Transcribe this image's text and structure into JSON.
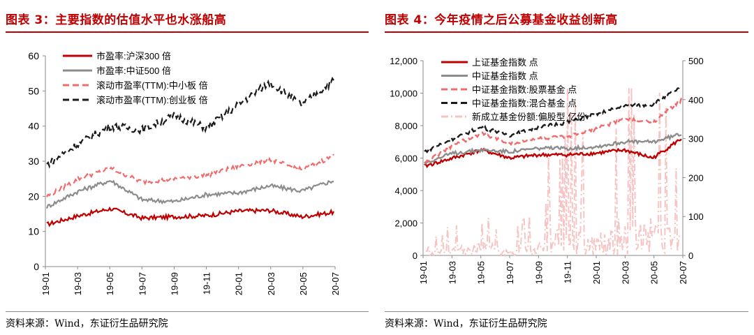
{
  "panels": [
    {
      "title": "图表 3：主要指数的估值水平也水涨船高",
      "source": "资料来源：Wind，东证衍生品研究院"
    },
    {
      "title": "图表 4：今年疫情之后公募基金收益创新高",
      "source": "资料来源：Wind，东证衍生品研究院"
    }
  ],
  "chart_data": [
    {
      "type": "line",
      "title": "主要指数的估值水平也水涨船高",
      "x": [
        "19-01",
        "19-03",
        "19-05",
        "19-07",
        "19-09",
        "19-11",
        "20-01",
        "20-03",
        "20-05",
        "20-07"
      ],
      "ylim": [
        0,
        60
      ],
      "yticks": [
        0,
        10,
        20,
        30,
        40,
        50,
        60
      ],
      "series": [
        {
          "name": "市盈率:沪深300 倍",
          "color": "#c00000",
          "dash": "solid",
          "values": [
            12.0,
            14.5,
            16.5,
            13.8,
            14.2,
            14.5,
            15.8,
            16.0,
            14.2,
            15.5
          ]
        },
        {
          "name": "市盈率:中证500 倍",
          "color": "#8c8c8c",
          "dash": "solid",
          "values": [
            17.0,
            21.5,
            24.5,
            19.0,
            18.5,
            20.5,
            21.0,
            23.0,
            21.5,
            24.5
          ]
        },
        {
          "name": "滚动市盈率(TTM):中小板 倍",
          "color": "#f06b6b",
          "dash": "dashed",
          "values": [
            20.0,
            25.0,
            28.0,
            24.0,
            25.0,
            26.0,
            28.5,
            30.5,
            27.5,
            31.5
          ]
        },
        {
          "name": "滚动市盈率(TTM):创业板 倍",
          "color": "#1a1a1a",
          "dash": "dashed",
          "values": [
            29.0,
            35.0,
            40.0,
            39.0,
            43.0,
            39.5,
            46.0,
            52.5,
            46.0,
            53.0
          ]
        }
      ]
    },
    {
      "type": "line",
      "title": "今年疫情之后公募基金收益创新高",
      "x": [
        "19-01",
        "19-03",
        "19-05",
        "19-07",
        "19-09",
        "19-11",
        "20-01",
        "20-03",
        "20-05",
        "20-07"
      ],
      "ylim": [
        0,
        12000
      ],
      "yticks": [
        "0",
        "2,000",
        "4,000",
        "6,000",
        "8,000",
        "10,000",
        "12,000"
      ],
      "ylim_right": [
        0,
        500
      ],
      "yticks_right": [
        0,
        100,
        200,
        300,
        400,
        500
      ],
      "series": [
        {
          "name": "上证基金指数 点",
          "color": "#c00000",
          "dash": "solid",
          "axis": "left",
          "values": [
            5500,
            6000,
            6500,
            6000,
            6200,
            6200,
            6300,
            6500,
            6000,
            7200
          ]
        },
        {
          "name": "中证基金指数 点",
          "color": "#8c8c8c",
          "dash": "solid",
          "axis": "left",
          "values": [
            5700,
            6300,
            6500,
            6400,
            6600,
            6600,
            6700,
            7000,
            7000,
            7500
          ]
        },
        {
          "name": "中证基金指数:股票基金 点",
          "color": "#f06b6b",
          "dash": "dashed",
          "axis": "left",
          "values": [
            5700,
            6800,
            7500,
            6900,
            7200,
            7300,
            7800,
            8400,
            8200,
            9600
          ]
        },
        {
          "name": "中证基金指数:混合基金 点",
          "color": "#1a1a1a",
          "dash": "dashed",
          "axis": "left",
          "values": [
            6400,
            7200,
            7900,
            7400,
            7900,
            8200,
            8700,
            9200,
            9300,
            10400
          ]
        },
        {
          "name": "新成立基金份额:偏股型 亿份",
          "color": "#f7c4c4",
          "dash": "dashdot",
          "axis": "right",
          "values": [
            10,
            40,
            80,
            30,
            60,
            230,
            90,
            240,
            200,
            130
          ]
        }
      ]
    }
  ]
}
